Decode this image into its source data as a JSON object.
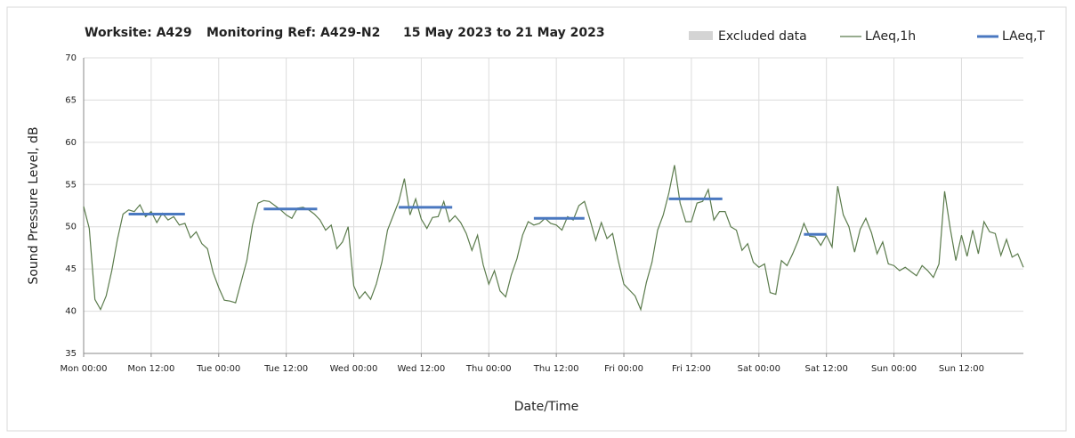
{
  "chart_data": {
    "type": "line",
    "title_parts": [
      "Worksite: A429",
      "Monitoring Ref: A429-N2",
      "15 May 2023 to 21 May 2023"
    ],
    "x_label": "Date/Time",
    "y_label": "Sound Pressure Level, dB",
    "xlim": [
      0,
      167
    ],
    "xticks": [
      {
        "value": 0,
        "label": "Mon 00:00"
      },
      {
        "value": 12,
        "label": "Mon 12:00"
      },
      {
        "value": 24,
        "label": "Tue 00:00"
      },
      {
        "value": 36,
        "label": "Tue 12:00"
      },
      {
        "value": 48,
        "label": "Wed 00:00"
      },
      {
        "value": 60,
        "label": "Wed 12:00"
      },
      {
        "value": 72,
        "label": "Thu 00:00"
      },
      {
        "value": 84,
        "label": "Thu 12:00"
      },
      {
        "value": 96,
        "label": "Fri 00:00"
      },
      {
        "value": 108,
        "label": "Fri 12:00"
      },
      {
        "value": 120,
        "label": "Sat 00:00"
      },
      {
        "value": 132,
        "label": "Sat 12:00"
      },
      {
        "value": 144,
        "label": "Sun 00:00"
      },
      {
        "value": 156,
        "label": "Sun 12:00"
      }
    ],
    "ylim": [
      35,
      70
    ],
    "yticks": [
      35,
      40,
      45,
      50,
      55,
      60,
      65,
      70
    ],
    "grid": true,
    "excluded": {
      "name": "Excluded data",
      "color": "#d4d4d4",
      "ranges": []
    },
    "series": [
      {
        "name": "LAeq,1h",
        "color": "#5b7b4c",
        "x": [
          0,
          1,
          2,
          3,
          4,
          5,
          6,
          7,
          8,
          9,
          10,
          11,
          12,
          13,
          14,
          15,
          16,
          17,
          18,
          19,
          20,
          21,
          22,
          23,
          24,
          25,
          26,
          27,
          28,
          29,
          30,
          31,
          32,
          33,
          34,
          35,
          36,
          37,
          38,
          39,
          40,
          41,
          42,
          43,
          44,
          45,
          46,
          47,
          48,
          49,
          50,
          51,
          52,
          53,
          54,
          55,
          56,
          57,
          58,
          59,
          60,
          61,
          62,
          63,
          64,
          65,
          66,
          67,
          68,
          69,
          70,
          71,
          72,
          73,
          74,
          75,
          76,
          77,
          78,
          79,
          80,
          81,
          82,
          83,
          84,
          85,
          86,
          87,
          88,
          89,
          90,
          91,
          92,
          93,
          94,
          95,
          96,
          97,
          98,
          99,
          100,
          101,
          102,
          103,
          104,
          105,
          106,
          107,
          108,
          109,
          110,
          111,
          112,
          113,
          114,
          115,
          116,
          117,
          118,
          119,
          120,
          121,
          122,
          123,
          124,
          125,
          126,
          127,
          128,
          129,
          130,
          131,
          132,
          133,
          134,
          135,
          136,
          137,
          138,
          139,
          140,
          141,
          142,
          143,
          144,
          145,
          146,
          147,
          148,
          149,
          150,
          151,
          152,
          153,
          154,
          155,
          156,
          157,
          158,
          159,
          160,
          161,
          162,
          163,
          164,
          165,
          166,
          167
        ],
        "values": [
          52.4,
          49.8,
          41.4,
          40.2,
          41.8,
          44.8,
          48.5,
          51.5,
          52.0,
          51.8,
          52.6,
          51.2,
          51.8,
          50.5,
          51.6,
          50.8,
          51.2,
          50.2,
          50.4,
          48.7,
          49.4,
          48.0,
          47.4,
          44.6,
          42.8,
          41.3,
          41.2,
          41.0,
          43.5,
          46.0,
          50.2,
          52.8,
          53.1,
          53.0,
          52.5,
          52.0,
          51.4,
          51.0,
          52.2,
          52.3,
          52.0,
          51.5,
          50.8,
          49.6,
          50.2,
          47.4,
          48.2,
          50.0,
          43.0,
          41.5,
          42.3,
          41.4,
          43.2,
          45.8,
          49.6,
          51.3,
          53.0,
          55.7,
          51.4,
          53.3,
          50.9,
          49.8,
          51.1,
          51.2,
          53.0,
          50.6,
          51.3,
          50.5,
          49.2,
          47.2,
          49.0,
          45.5,
          43.2,
          44.8,
          42.4,
          41.7,
          44.3,
          46.2,
          49.0,
          50.6,
          50.2,
          50.4,
          51.0,
          50.4,
          50.2,
          49.6,
          51.2,
          50.8,
          52.5,
          53.0,
          50.8,
          48.4,
          50.5,
          48.6,
          49.2,
          46.0,
          43.2,
          42.5,
          41.8,
          40.2,
          43.4,
          45.8,
          49.6,
          51.4,
          54.0,
          57.3,
          52.8,
          50.6,
          50.6,
          52.8,
          53.0,
          54.4,
          50.8,
          51.8,
          51.8,
          50.0,
          49.6,
          47.2,
          48.0,
          45.8,
          45.2,
          45.6,
          42.2,
          42.0,
          46.0,
          45.4,
          46.8,
          48.4,
          50.4,
          48.9,
          48.8,
          47.8,
          49.0,
          47.6,
          54.8,
          51.4,
          50.0,
          47.0,
          49.7,
          51.0,
          49.3,
          46.8,
          48.2,
          45.6,
          45.4,
          44.8,
          45.2,
          44.7,
          44.2,
          45.4,
          44.8,
          44.0,
          45.6,
          54.2,
          49.8,
          46.0,
          49.0,
          46.5,
          49.6,
          46.8,
          50.6,
          49.4,
          49.2,
          46.6,
          48.5,
          46.4,
          46.8,
          45.2
        ]
      },
      {
        "name": "LAeq,T",
        "color": "#4a78c0",
        "segments": [
          {
            "start": 8,
            "end": 18,
            "value": 51.5
          },
          {
            "start": 32,
            "end": 41.5,
            "value": 52.1
          },
          {
            "start": 56,
            "end": 65.5,
            "value": 52.3
          },
          {
            "start": 80,
            "end": 89,
            "value": 51.0
          },
          {
            "start": 104,
            "end": 113.5,
            "value": 53.3
          },
          {
            "start": 128,
            "end": 132,
            "value": 49.1
          }
        ]
      }
    ]
  }
}
